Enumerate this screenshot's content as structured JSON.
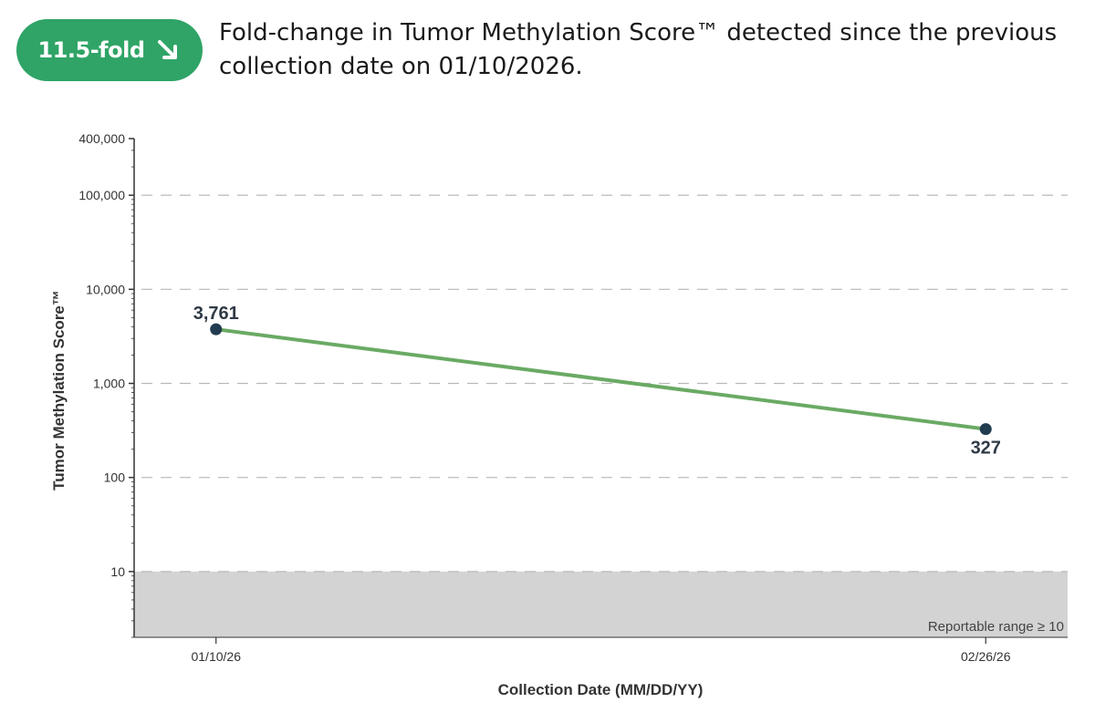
{
  "badge": {
    "label": "11.5-fold",
    "icon": "arrow-down-right-icon",
    "color": "#2fa466"
  },
  "headline": "Fold-change in Tumor Methylation Score™ detected since the previous collection date on 01/10/2026.",
  "chart_data": {
    "type": "line",
    "scale": "log",
    "xlabel": "Collection Date (MM/DD/YY)",
    "ylabel": "Tumor Methylation Score™",
    "ylim": [
      2,
      400000
    ],
    "yticks": [
      10,
      100,
      1000,
      10000,
      100000,
      400000
    ],
    "ytick_labels": [
      "10",
      "100",
      "1,000",
      "10,000",
      "100,000",
      "400,000"
    ],
    "grid": "horizontal dashed at major ticks",
    "x_categories": [
      "01/10/26",
      "02/26/26"
    ],
    "x_days": [
      0,
      47
    ],
    "x_range_days": [
      -5,
      52
    ],
    "series": [
      {
        "values": [
          3761,
          327
        ],
        "labels": [
          "3,761",
          "327"
        ],
        "line_color": "#6aaa64",
        "marker_color": "#213b4f"
      }
    ],
    "shaded_region": {
      "below": 10,
      "label": "Reportable range ≥ 10",
      "color": "#d3d3d3"
    }
  }
}
